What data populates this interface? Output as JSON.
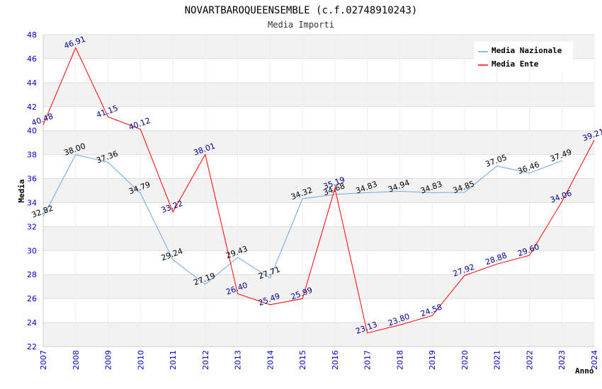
{
  "chart_data": {
    "type": "line",
    "title": "NOVARTBAROQUEENSEMBLE (c.f.02748910243)",
    "subtitle": "Media Importi",
    "xlabel": "Anno",
    "ylabel": "Media",
    "ylim": [
      22,
      48
    ],
    "yticks": [
      "22",
      "24",
      "26",
      "28",
      "30",
      "32",
      "34",
      "36",
      "38",
      "40",
      "42",
      "44",
      "46",
      "48"
    ],
    "x": [
      "2007",
      "2008",
      "2009",
      "2010",
      "2011",
      "2012",
      "2013",
      "2014",
      "2015",
      "2016",
      "2017",
      "2018",
      "2019",
      "2020",
      "2021",
      "2022",
      "2023",
      "2024"
    ],
    "grid": true,
    "legend_position": "top-right",
    "series": [
      {
        "name": "Media Nazionale",
        "color": "#6fa8e6",
        "values": [
          32.82,
          38.0,
          37.36,
          34.79,
          29.24,
          27.19,
          29.43,
          27.71,
          34.32,
          34.68,
          34.83,
          34.94,
          34.83,
          34.85,
          37.05,
          36.46,
          37.49,
          null
        ],
        "labels": [
          "32.82",
          "38.00",
          "37.36",
          "34.79",
          "29.24",
          "27.19",
          "29.43",
          "27.71",
          "34.32",
          "34.68",
          "34.83",
          "34.94",
          "34.83",
          "34.85",
          "37.05",
          "36.46",
          "37.49",
          null
        ]
      },
      {
        "name": "Media Ente",
        "color": "#ff0000",
        "values": [
          40.48,
          46.91,
          41.15,
          40.12,
          33.22,
          38.01,
          26.4,
          25.49,
          25.99,
          35.19,
          23.13,
          23.8,
          24.58,
          27.92,
          28.88,
          29.6,
          34.06,
          39.21
        ],
        "labels": [
          "40.48",
          "46.91",
          "41.15",
          "40.12",
          "33.22",
          "38.01",
          "26.40",
          "25.49",
          "25.99",
          "35.19",
          "23.13",
          "23.80",
          "24.58",
          "27.92",
          "28.88",
          "29.60",
          "34.06",
          "39.21"
        ]
      }
    ]
  }
}
